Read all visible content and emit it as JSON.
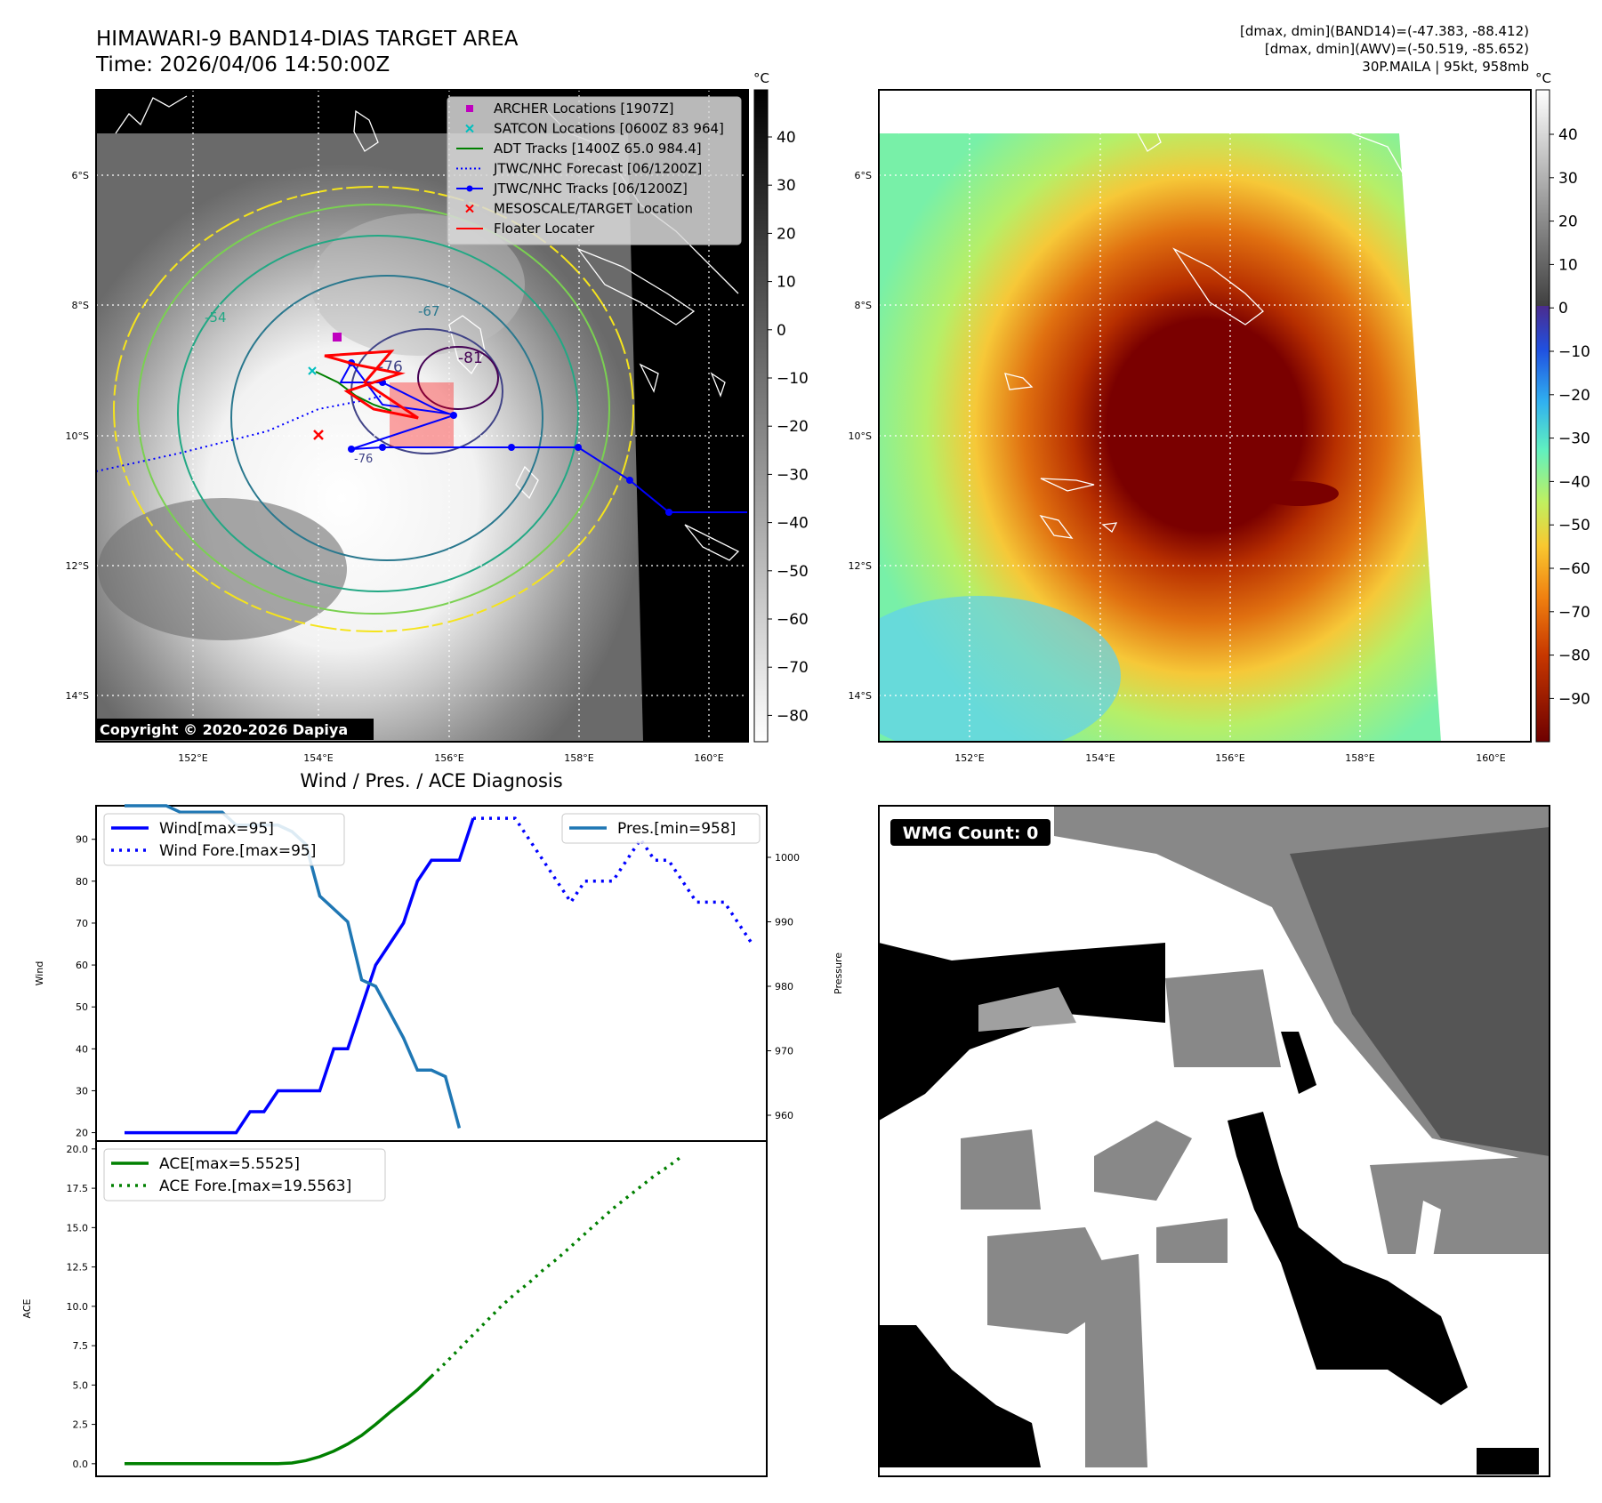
{
  "header": {
    "title": "HIMAWARI-9 BAND14-DIAS TARGET AREA",
    "time": "Time: 2026/04/06 14:50:00Z",
    "info_line1": "[dmax, dmin](BAND14)=(-47.383, -88.412)",
    "info_line2": "[dmax, dmin](AWV)=(-50.519, -85.652)",
    "info_line3": "30P.MAILA | 95kt, 958mb"
  },
  "map": {
    "lat_labels": [
      "6°S",
      "8°S",
      "10°S",
      "12°S",
      "14°S"
    ],
    "lon_labels": [
      "152°E",
      "154°E",
      "156°E",
      "158°E",
      "160°E"
    ],
    "copyright": "Copyright © 2020-2026 Dapiya",
    "contour_labels": [
      "-54",
      "-67",
      "-76",
      "-81",
      "-76"
    ],
    "legend": [
      {
        "label": "ARCHER Locations [1907Z]",
        "color": "#bf00bf",
        "marker": "square"
      },
      {
        "label": "SATCON Locations [0600Z 83 964]",
        "color": "#00bfbf",
        "marker": "x"
      },
      {
        "label": "ADT Tracks [1400Z 65.0 984.4]",
        "color": "#008000",
        "marker": "line"
      },
      {
        "label": "JTWC/NHC Forecast [06/1200Z]",
        "color": "#0000ff",
        "marker": "dotted"
      },
      {
        "label": "JTWC/NHC Tracks [06/1200Z]",
        "color": "#0000ff",
        "marker": "line-dot"
      },
      {
        "label": "MESOSCALE/TARGET Location",
        "color": "#ff0000",
        "marker": "x"
      },
      {
        "label": "Floater Locater",
        "color": "#ff0000",
        "marker": "line"
      }
    ]
  },
  "colorbar_left": {
    "unit": "°C",
    "ticks": [
      "40",
      "30",
      "20",
      "10",
      "0",
      "−10",
      "−20",
      "−30",
      "−40",
      "−50",
      "−60",
      "−70",
      "−80"
    ]
  },
  "colorbar_right": {
    "unit": "°C",
    "ticks": [
      "40",
      "30",
      "20",
      "10",
      "0",
      "−10",
      "−20",
      "−30",
      "−40",
      "−50",
      "−60",
      "−70",
      "−80",
      "−90"
    ]
  },
  "diagnosis_title": "Wind / Pres. / ACE Diagnosis",
  "wmg_label": "WMG Count: 0",
  "chart_data": [
    {
      "type": "line",
      "title": "Wind / Pres. / ACE Diagnosis",
      "ylabel": "Wind",
      "y2label": "Pressure",
      "ylim": [
        18,
        98
      ],
      "y2lim": [
        956,
        1008
      ],
      "yticks": [
        "20",
        "30",
        "40",
        "50",
        "60",
        "70",
        "80",
        "90"
      ],
      "y2ticks": [
        "960",
        "970",
        "980",
        "990",
        "1000"
      ],
      "x_points": 29,
      "series": [
        {
          "name": "Wind[max=95]",
          "axis": "left",
          "style": "solid",
          "color": "#0000ff",
          "values": [
            20,
            20,
            20,
            20,
            20,
            20,
            20,
            20,
            20,
            25,
            25,
            30,
            30,
            30,
            30,
            40,
            40,
            50,
            60,
            65,
            70,
            80,
            85,
            85,
            85,
            95,
            null,
            null,
            null
          ]
        },
        {
          "name": "Wind Fore.[max=95]",
          "axis": "left",
          "style": "dotted",
          "color": "#0000ff",
          "start_index": 25,
          "values": [
            95,
            95,
            95,
            95,
            90,
            85,
            80,
            75,
            80,
            80,
            80,
            85,
            90,
            85,
            85,
            80,
            75,
            75,
            75,
            70,
            65
          ]
        },
        {
          "name": "Pres.[min=958]",
          "axis": "right",
          "style": "solid",
          "color": "#1f77b4",
          "values": [
            1008,
            1008,
            1008,
            1008,
            1007,
            1007,
            1007,
            1007,
            1005,
            1005,
            1005,
            1005,
            1004,
            1002,
            994,
            992,
            990,
            981,
            980,
            976,
            972,
            967,
            967,
            966,
            958
          ]
        }
      ]
    },
    {
      "type": "line",
      "ylabel": "ACE",
      "ylim": [
        -0.8,
        20.5
      ],
      "yticks": [
        "0.0",
        "2.5",
        "5.0",
        "7.5",
        "10.0",
        "12.5",
        "15.0",
        "17.5",
        "20.0"
      ],
      "series": [
        {
          "name": "ACE[max=5.5525]",
          "style": "solid",
          "color": "#008000",
          "values": [
            0,
            0,
            0,
            0,
            0,
            0,
            0,
            0,
            0,
            0,
            0,
            0,
            0.05,
            0.2,
            0.45,
            0.8,
            1.25,
            1.8,
            2.5,
            3.25,
            3.95,
            4.7,
            5.55
          ]
        },
        {
          "name": "ACE Fore.[max=19.5563]",
          "style": "dotted",
          "color": "#008000",
          "start_index": 22,
          "values": [
            5.55,
            6.4,
            7.3,
            8.2,
            9.1,
            10.0,
            10.8,
            11.5,
            12.3,
            13.0,
            13.8,
            14.6,
            15.4,
            16.2,
            16.9,
            17.6,
            18.3,
            18.9,
            19.56
          ]
        }
      ]
    }
  ]
}
